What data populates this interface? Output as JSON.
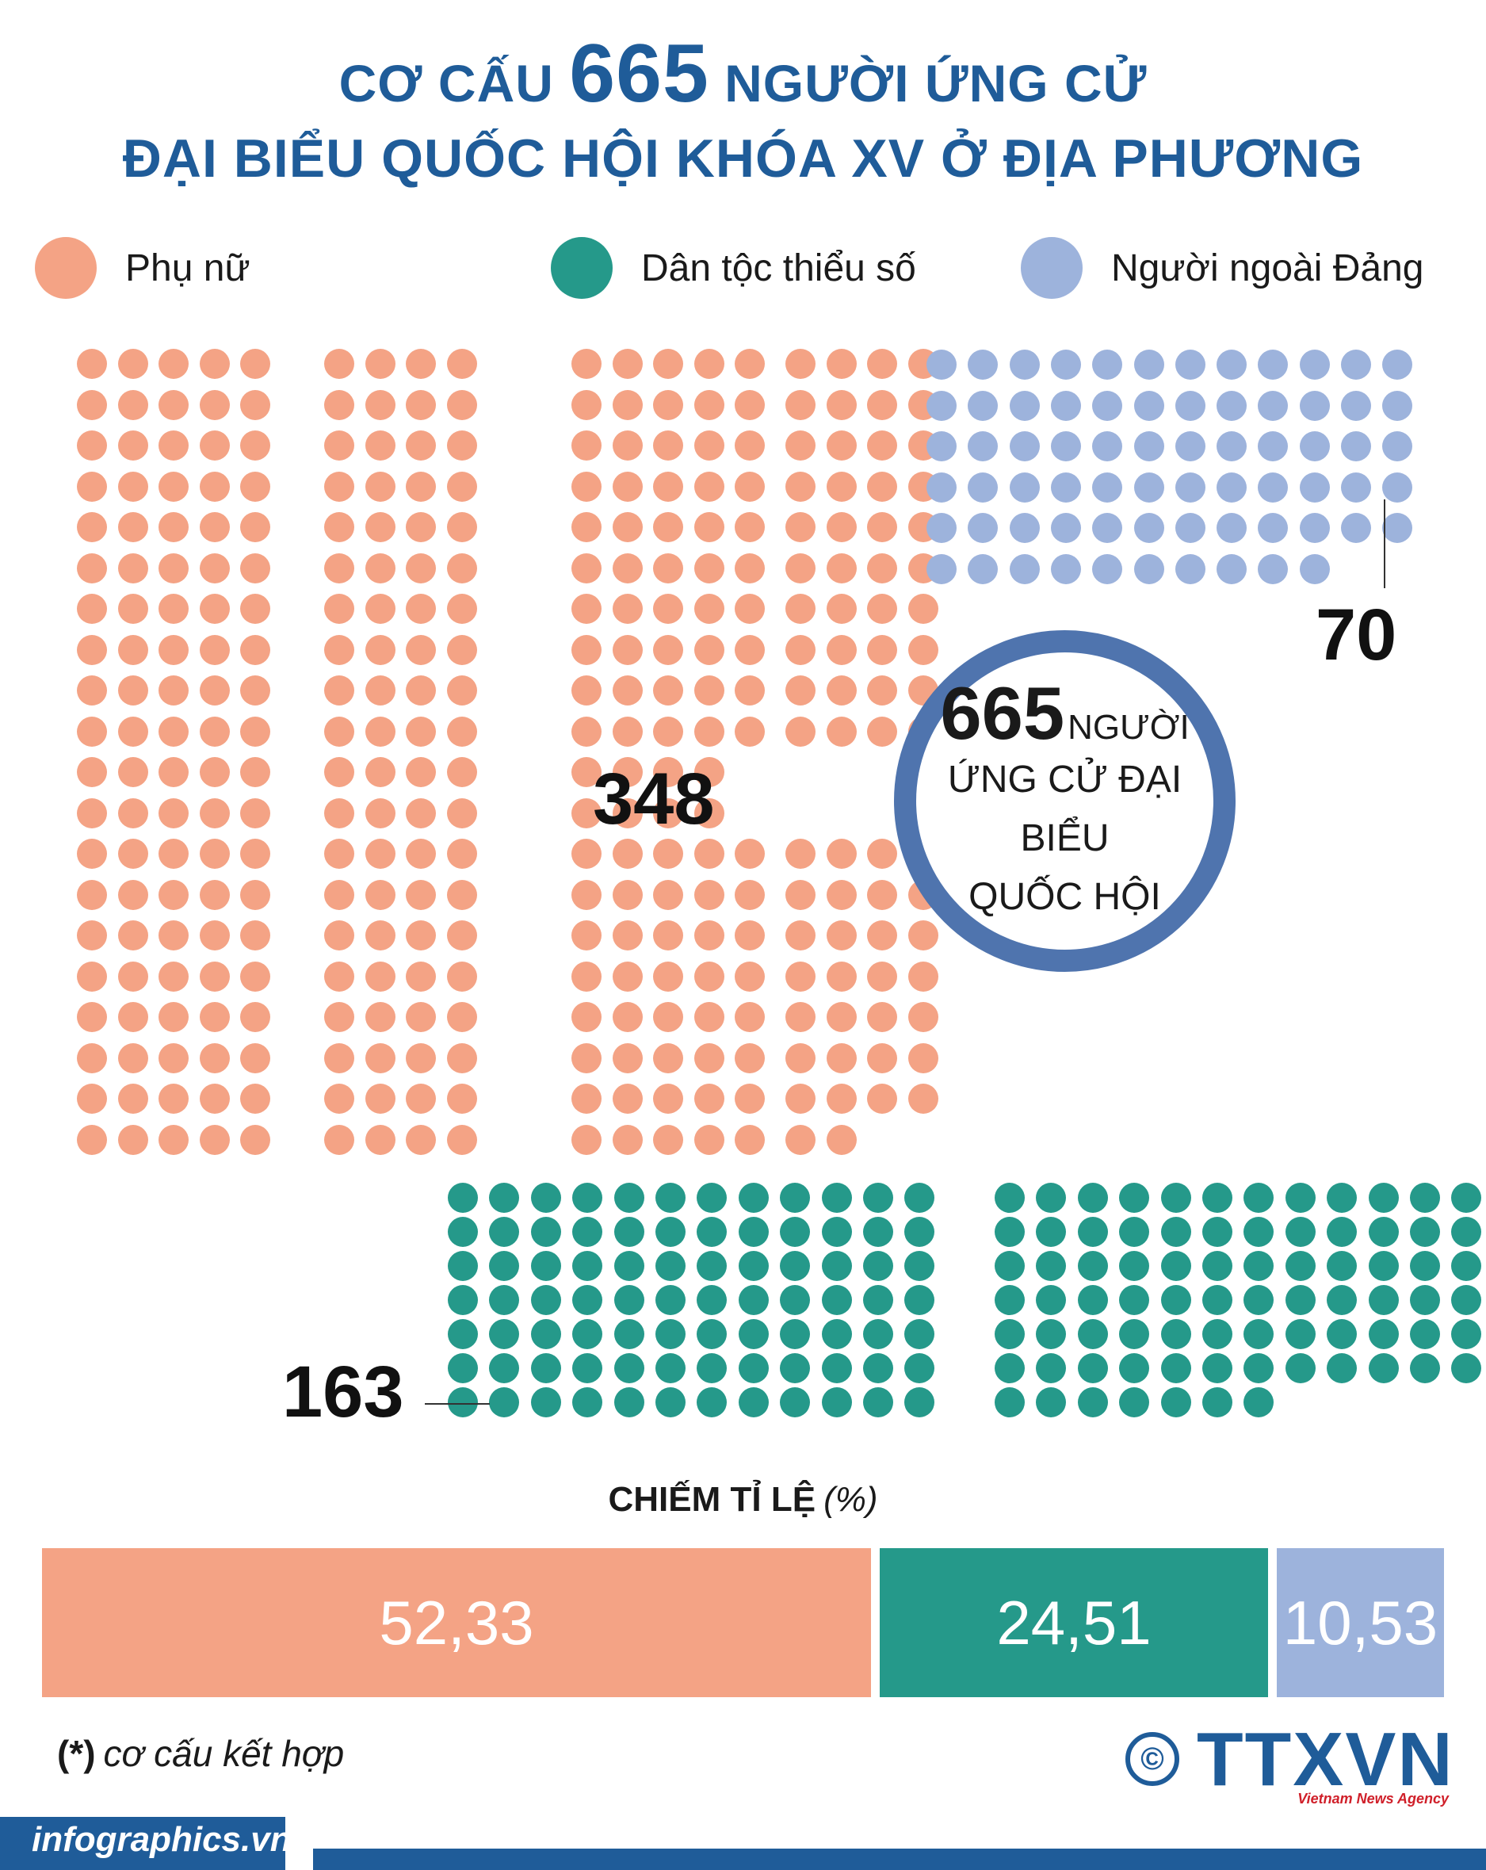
{
  "title": {
    "line1_prefix": "CƠ CẤU",
    "line1_number": "665",
    "line1_suffix": "NGƯỜI ỨNG CỬ",
    "line2": "ĐẠI BIỂU QUỐC HỘI KHÓA XV Ở ĐỊA PHƯƠNG"
  },
  "colors": {
    "women": "#f4a385",
    "ethnic": "#25998a",
    "party": "#9db3dc",
    "title": "#1f5c99",
    "ring": "#4f74ae"
  },
  "legend": [
    {
      "label": "Phụ nữ",
      "color": "#f4a385"
    },
    {
      "label": "Dân tộc thiểu số",
      "color": "#25998a"
    },
    {
      "label": "Người ngoài Đảng",
      "color": "#9db3dc"
    }
  ],
  "center": {
    "number": "665",
    "unit": "NGƯỜI",
    "line2": "ỨNG CỬ ĐẠI BIỂU",
    "line3": "QUỐC HỘI"
  },
  "chart_data": {
    "type": "waffle",
    "total": 665,
    "series": [
      {
        "name": "Phụ nữ",
        "count": 348,
        "count_label": "348",
        "percent": 52.33,
        "percent_label": "52,33"
      },
      {
        "name": "Dân tộc thiểu số",
        "count": 163,
        "count_label": "163",
        "percent": 24.51,
        "percent_label": "24,51"
      },
      {
        "name": "Người ngoài Đảng",
        "count": 70,
        "count_label": "70",
        "percent": 10.53,
        "percent_label": "10,53"
      }
    ],
    "percent_heading": "CHIẾM TỈ LỆ",
    "percent_unit": "(%)"
  },
  "footnote": {
    "mark": "(*)",
    "text": "cơ cấu kết hợp"
  },
  "copyright_symbol": "©",
  "logo": {
    "text": "TTXVN",
    "subtitle": "Vietnam News Agency"
  },
  "site": "infographics.vn"
}
